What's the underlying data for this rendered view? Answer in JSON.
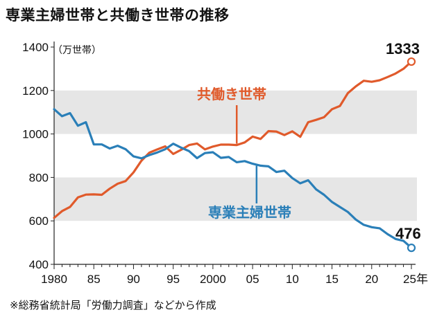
{
  "title": "専業主婦世帯と共働き世帯の推移",
  "source": "※総務省統計局「労働力調査」などから作成",
  "chart_data": {
    "type": "line",
    "unit_label": "（万世帯）",
    "ylim": [
      400,
      1400
    ],
    "yticks": [
      "400",
      "600",
      "800",
      "1000",
      "1200",
      "1400"
    ],
    "xlim": [
      1980,
      2025
    ],
    "xticks": [
      {
        "year": 1980,
        "label": "1980"
      },
      {
        "year": 1985,
        "label": "85"
      },
      {
        "year": 1990,
        "label": "90"
      },
      {
        "year": 1995,
        "label": "95"
      },
      {
        "year": 2000,
        "label": "2000"
      },
      {
        "year": 2005,
        "label": "05"
      },
      {
        "year": 2010,
        "label": "10"
      },
      {
        "year": 2015,
        "label": "15"
      },
      {
        "year": 2020,
        "label": "20"
      },
      {
        "year": 2025,
        "label": "25年"
      }
    ],
    "x": [
      1980,
      1981,
      1982,
      1983,
      1984,
      1985,
      1986,
      1987,
      1988,
      1989,
      1990,
      1991,
      1992,
      1993,
      1994,
      1995,
      1996,
      1997,
      1998,
      1999,
      2000,
      2001,
      2002,
      2003,
      2004,
      2005,
      2006,
      2007,
      2008,
      2009,
      2010,
      2011,
      2012,
      2013,
      2014,
      2015,
      2016,
      2017,
      2018,
      2019,
      2020,
      2021,
      2022,
      2023,
      2024,
      2025
    ],
    "series": [
      {
        "name": "共働き世帯",
        "color": "#e05a2b",
        "end_value_label": "1333",
        "values": [
          614,
          645,
          664,
          708,
          721,
          722,
          720,
          748,
          771,
          783,
          823,
          877,
          914,
          929,
          943,
          908,
          927,
          949,
          956,
          929,
          942,
          951,
          951,
          949,
          961,
          988,
          977,
          1013,
          1011,
          995,
          1012,
          987,
          1054,
          1065,
          1077,
          1114,
          1129,
          1188,
          1219,
          1245,
          1240,
          1247,
          1262,
          1278,
          1300,
          1333
        ]
      },
      {
        "name": "専業主婦世帯",
        "color": "#2a7fb8",
        "end_value_label": "476",
        "values": [
          1114,
          1082,
          1096,
          1038,
          1054,
          952,
          952,
          933,
          946,
          930,
          897,
          888,
          903,
          915,
          930,
          955,
          937,
          921,
          889,
          912,
          916,
          890,
          894,
          870,
          875,
          863,
          854,
          851,
          825,
          831,
          797,
          773,
          787,
          745,
          720,
          687,
          664,
          641,
          606,
          582,
          571,
          566,
          539,
          517,
          508,
          476
        ]
      }
    ]
  }
}
